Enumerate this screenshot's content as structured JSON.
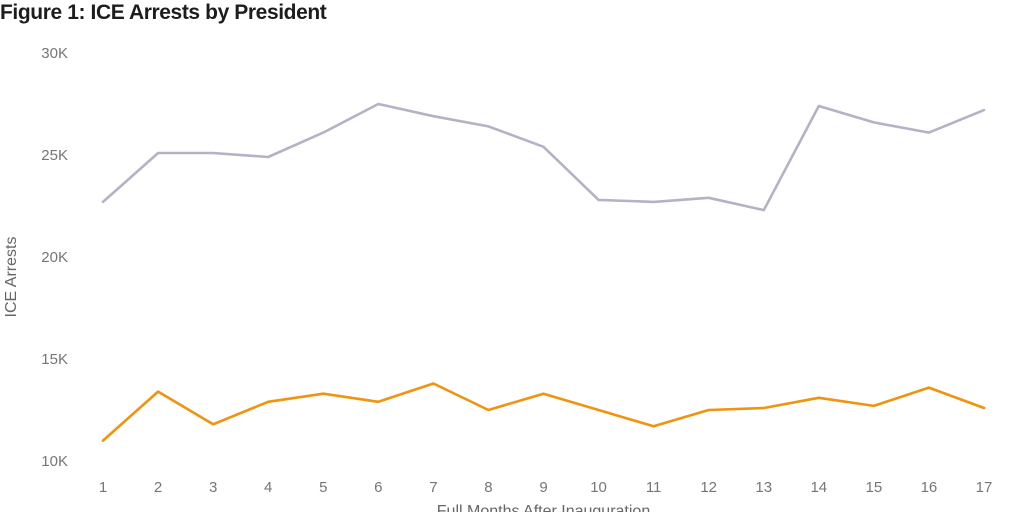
{
  "title": "Figure 1: ICE Arrests by President",
  "chart_data": {
    "type": "line",
    "title": "Figure 1: ICE Arrests by President",
    "xlabel": "Full Months After Inauguration",
    "ylabel": "ICE Arrests",
    "x": [
      1,
      2,
      3,
      4,
      5,
      6,
      7,
      8,
      9,
      10,
      11,
      12,
      13,
      14,
      15,
      16,
      17
    ],
    "x_tick_labels": [
      "1",
      "2",
      "3",
      "4",
      "5",
      "6",
      "7",
      "8",
      "9",
      "10",
      "11",
      "12",
      "13",
      "14",
      "15",
      "16",
      "17"
    ],
    "y_ticks": [
      10000,
      15000,
      20000,
      25000,
      30000
    ],
    "y_tick_labels": [
      "10K",
      "15K",
      "20K",
      "25K",
      "30K"
    ],
    "ylim": [
      10000,
      30000
    ],
    "grid": false,
    "legend_position": "none",
    "series": [
      {
        "name": "gray-line",
        "color": "#b7b1c6",
        "values": [
          22700,
          25100,
          25100,
          24900,
          26100,
          27500,
          26900,
          26400,
          25400,
          22800,
          22700,
          22900,
          22300,
          27400,
          26600,
          26100,
          27200
        ]
      },
      {
        "name": "orange-line",
        "color": "#f0930e",
        "values": [
          11000,
          13400,
          11800,
          12900,
          13300,
          12900,
          13800,
          12500,
          13300,
          12500,
          11700,
          12500,
          12600,
          13100,
          12700,
          13600,
          12600
        ]
      }
    ]
  },
  "colors": {
    "title_text": "#1d1d1d",
    "tick_text": "#767676",
    "axis_text": "#666666",
    "background": "#ffffff"
  }
}
